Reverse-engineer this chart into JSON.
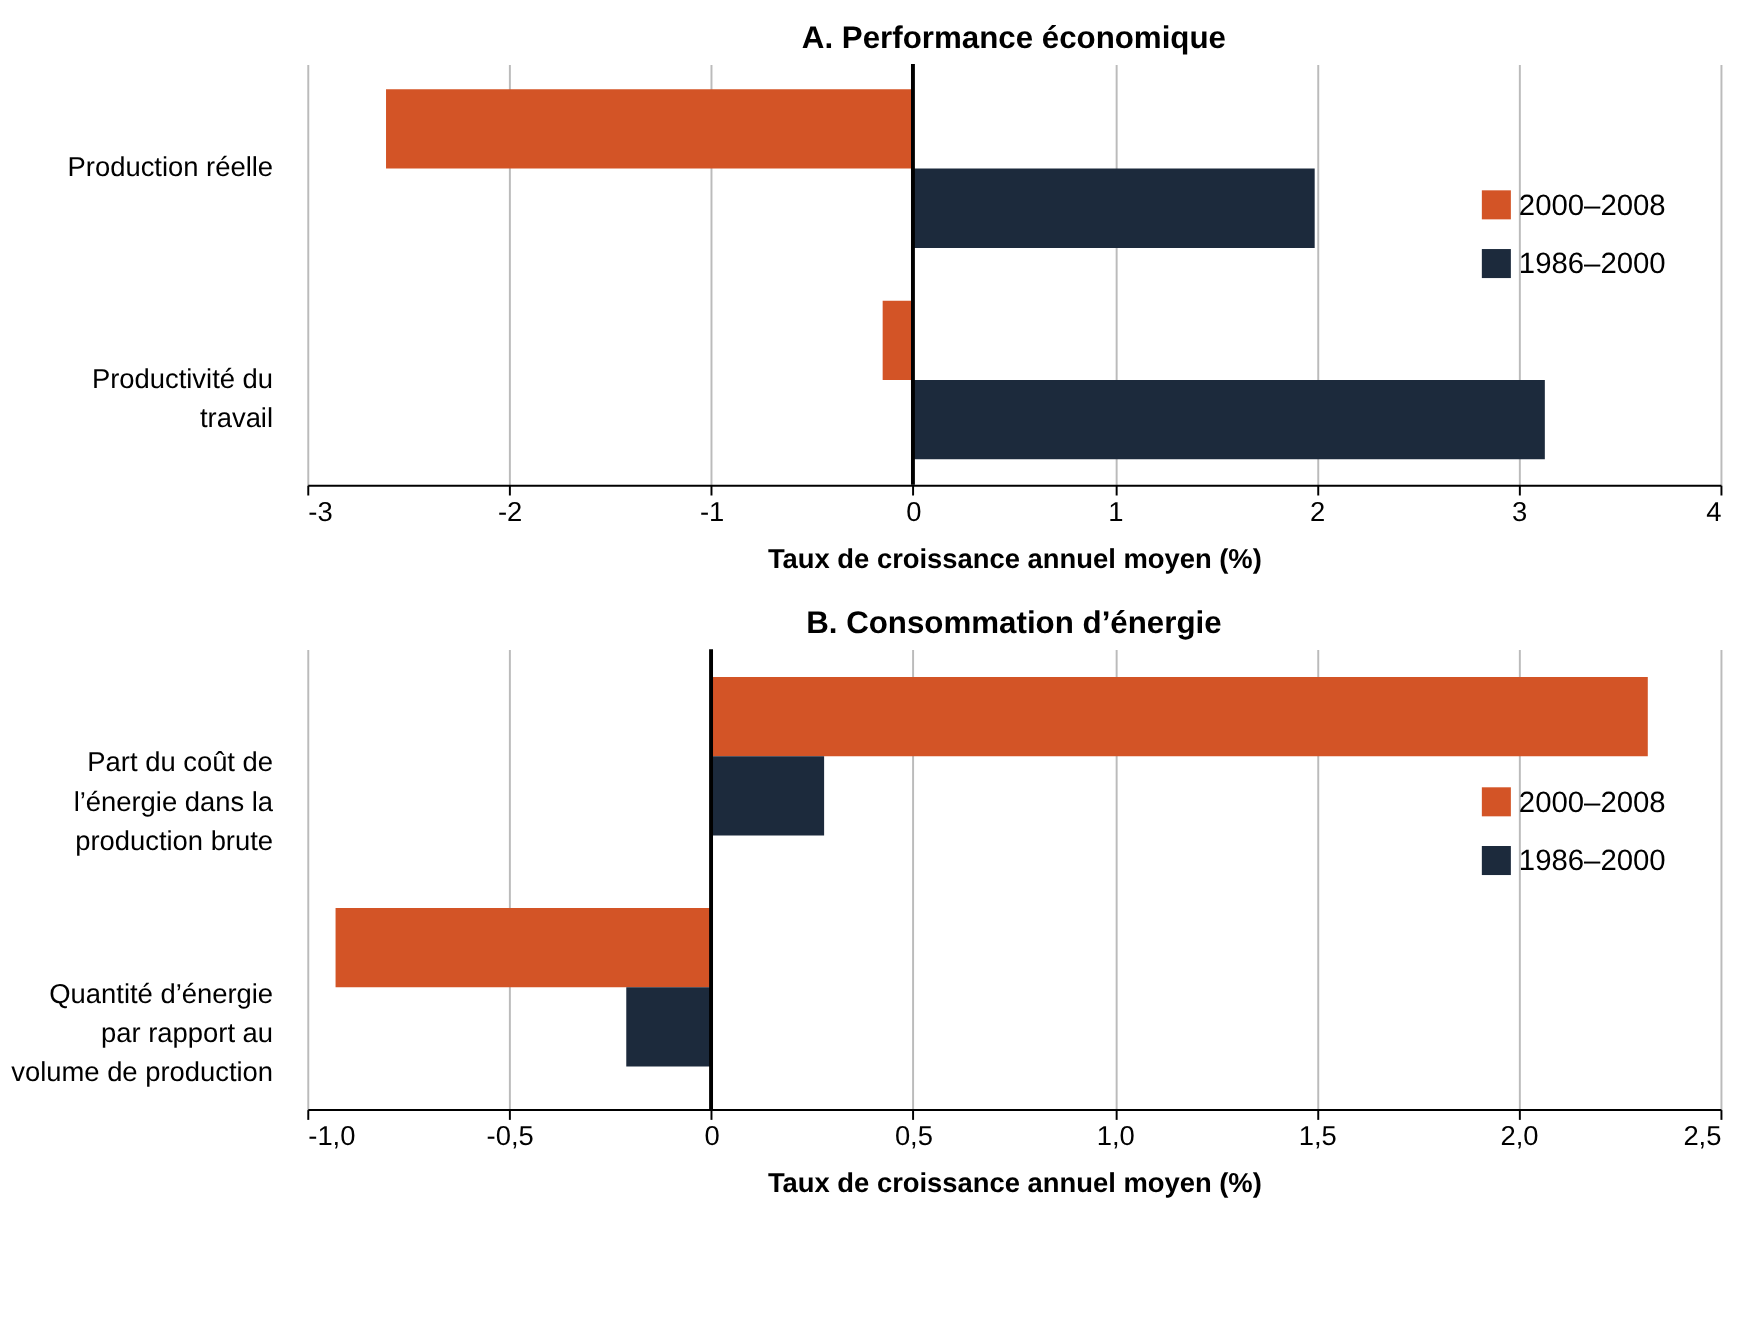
{
  "chart_data": [
    {
      "type": "bar",
      "orientation": "horizontal",
      "title": "A. Performance économique",
      "xlabel": "Taux de croissance annuel moyen (%)",
      "categories": [
        "Production réelle",
        "Productivité du travail"
      ],
      "series": [
        {
          "name": "2000–2008",
          "color": "#d35426",
          "values": [
            -2.61,
            -0.15
          ]
        },
        {
          "name": "1986–2000",
          "color": "#1c2a3c",
          "values": [
            1.99,
            3.13
          ]
        }
      ],
      "xlim": [
        -3,
        4
      ],
      "xticks": [
        -3,
        -2,
        -1,
        0,
        1,
        2,
        3,
        4
      ],
      "grid": "x",
      "legend": "right",
      "ref_lines": [
        {
          "axis": "x",
          "value": 0,
          "color": "#000000"
        }
      ]
    },
    {
      "type": "bar",
      "orientation": "horizontal",
      "title": "B. Consommation d’énergie",
      "xlabel": "Taux de croissance annuel moyen (%)",
      "categories": [
        "Part du coût de l’énergie dans la production brute",
        "Quantité d’énergie par rapport au volume de production"
      ],
      "series": [
        {
          "name": "2000–2008",
          "color": "#d35426",
          "values": [
            2.32,
            -0.93
          ]
        },
        {
          "name": "1986–2000",
          "color": "#1c2a3c",
          "values": [
            0.28,
            -0.21
          ]
        }
      ],
      "xlim": [
        -1.0,
        2.5
      ],
      "xticks": [
        {
          "value": -1.0,
          "label": "-1,0"
        },
        {
          "value": -0.5,
          "label": "-0,5"
        },
        0,
        {
          "value": 0.5,
          "label": "0,5"
        },
        {
          "value": 1.0,
          "label": "1,0"
        },
        {
          "value": 1.5,
          "label": "1,5"
        },
        {
          "value": 2.0,
          "label": "2,0"
        },
        {
          "value": 2.5,
          "label": "2,5"
        }
      ],
      "grid": "x",
      "legend": "right",
      "ref_lines": [
        {
          "axis": "x",
          "value": 0,
          "color": "#000000"
        }
      ]
    }
  ]
}
